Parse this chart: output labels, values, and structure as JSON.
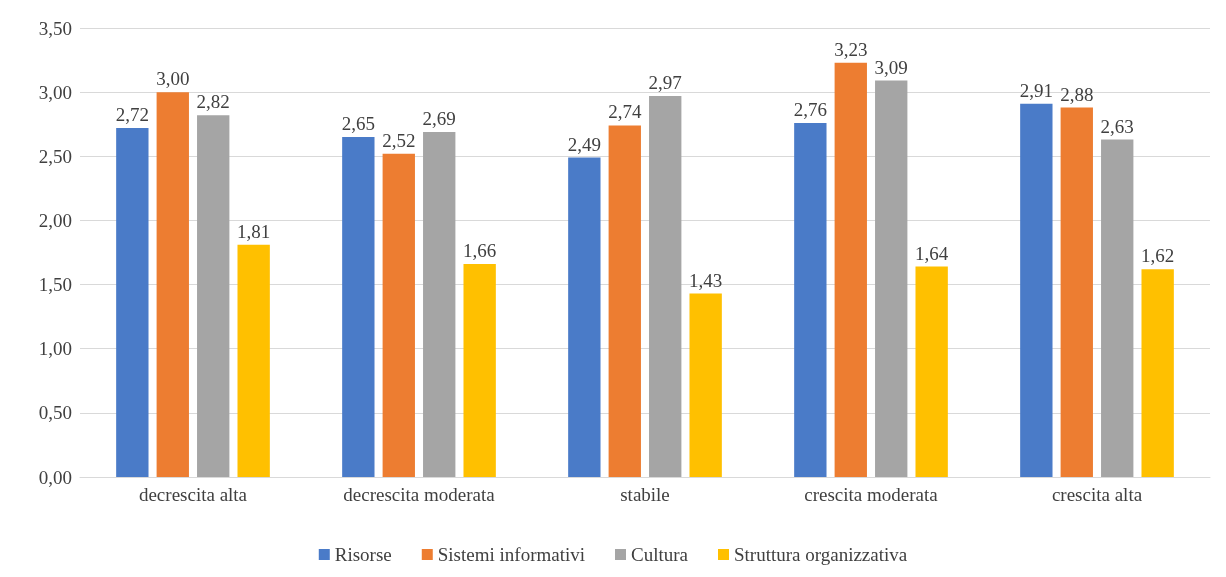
{
  "chart_data": {
    "type": "bar",
    "categories": [
      "decrescita alta",
      "decrescita moderata",
      "stabile",
      "crescita moderata",
      "crescita alta"
    ],
    "series": [
      {
        "name": "Risorse",
        "color": "#4a7bc8",
        "values": [
          2.72,
          2.65,
          2.49,
          2.76,
          2.91
        ],
        "value_labels": [
          "2,72",
          "2,65",
          "2,49",
          "2,76",
          "2,91"
        ]
      },
      {
        "name": "Sistemi informativi",
        "color": "#ed7d31",
        "values": [
          3.0,
          2.52,
          2.74,
          3.23,
          2.88
        ],
        "value_labels": [
          "3,00",
          "2,52",
          "2,74",
          "3,23",
          "2,88"
        ]
      },
      {
        "name": "Cultura",
        "color": "#a5a5a5",
        "values": [
          2.82,
          2.69,
          2.97,
          3.09,
          2.63
        ],
        "value_labels": [
          "2,82",
          "2,69",
          "2,97",
          "3,09",
          "2,63"
        ]
      },
      {
        "name": "Struttura organizzativa",
        "color": "#ffc000",
        "values": [
          1.81,
          1.66,
          1.43,
          1.64,
          1.62
        ],
        "value_labels": [
          "1,81",
          "1,66",
          "1,43",
          "1,64",
          "1,62"
        ]
      }
    ],
    "ylim": [
      0,
      3.5
    ],
    "yticks": [
      {
        "value": 0,
        "label": "0,00"
      },
      {
        "value": 0.5,
        "label": "0,50"
      },
      {
        "value": 1,
        "label": "1,00"
      },
      {
        "value": 1.5,
        "label": "1,50"
      },
      {
        "value": 2,
        "label": "2,00"
      },
      {
        "value": 2.5,
        "label": "2,50"
      },
      {
        "value": 3,
        "label": "3,00"
      },
      {
        "value": 3.5,
        "label": "3,50"
      }
    ],
    "grid": "y",
    "legend": "bottom"
  }
}
